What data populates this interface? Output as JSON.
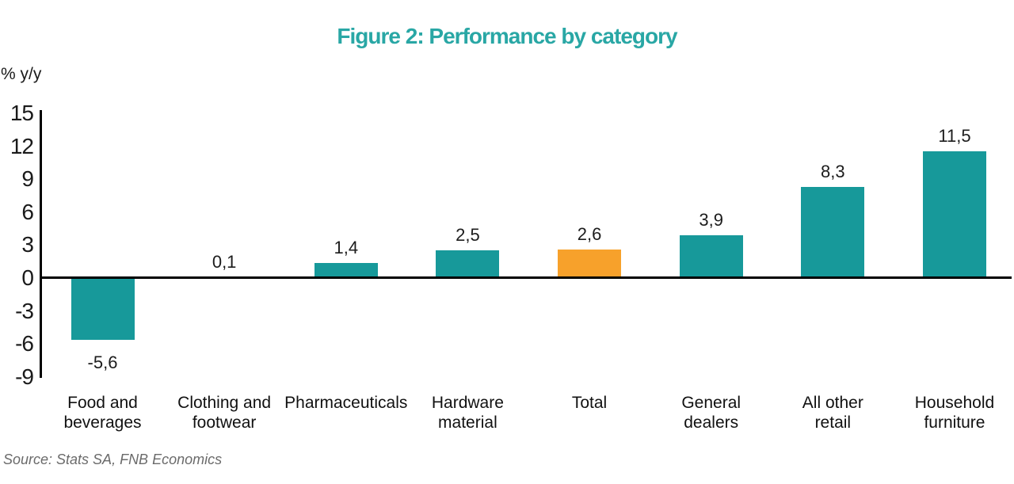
{
  "header": {
    "title": "Figure 2: Performance by category",
    "title_color": "#29A7A5"
  },
  "footer": {
    "source": "Source: Stats SA, FNB Economics"
  },
  "chart_data": {
    "type": "bar",
    "title": "Figure 2: Performance by category",
    "ylabel": "% y/y",
    "xlabel": "",
    "categories": [
      "Food and beverages",
      "Clothing and footwear",
      "Pharmaceuticals",
      "Hardware material",
      "Total",
      "General dealers",
      "All other retail",
      "Household furniture"
    ],
    "category_lines": [
      [
        "Food and",
        "beverages"
      ],
      [
        "Clothing and",
        "footwear"
      ],
      [
        "Pharmaceuticals"
      ],
      [
        "Hardware",
        "material"
      ],
      [
        "Total"
      ],
      [
        "General",
        "dealers"
      ],
      [
        "All other",
        "retail"
      ],
      [
        "Household",
        "furniture"
      ]
    ],
    "values": [
      -5.6,
      0.1,
      1.4,
      2.5,
      2.6,
      3.9,
      8.3,
      11.5
    ],
    "value_labels": [
      "-5,6",
      "0,1",
      "1,4",
      "2,5",
      "2,6",
      "3,9",
      "8,3",
      "11,5"
    ],
    "highlight_category": "Total",
    "bar_color": "#17999A",
    "highlight_color": "#F7A12B",
    "ylim": [
      -9,
      15
    ],
    "yticks": [
      15,
      12,
      9,
      6,
      3,
      0,
      -3,
      -6,
      -9
    ],
    "grid": false,
    "legend": null,
    "decimal_separator": ","
  }
}
